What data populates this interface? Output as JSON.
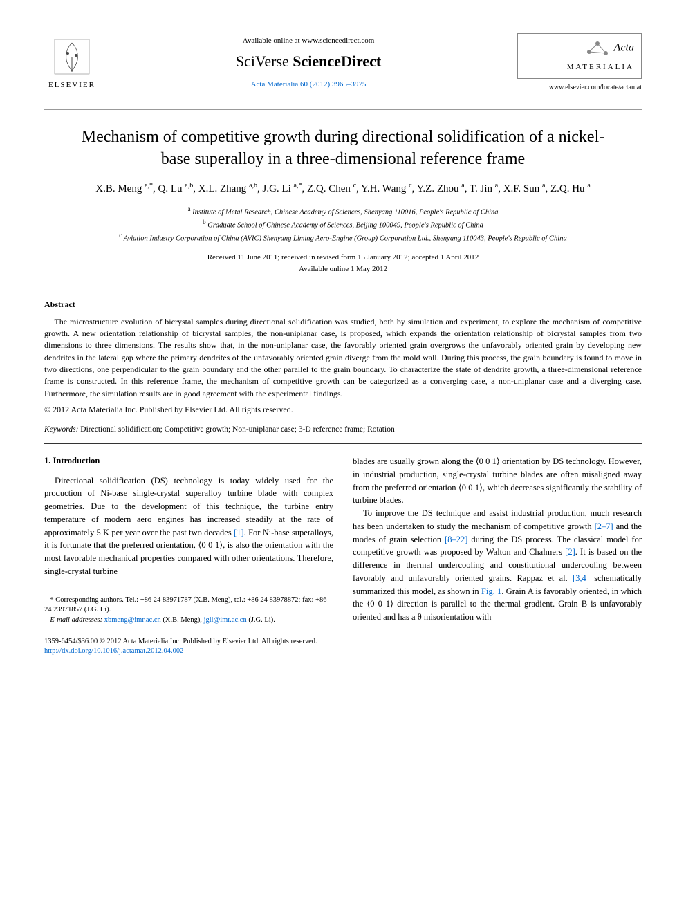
{
  "header": {
    "available_online": "Available online at www.sciencedirect.com",
    "scidirect_prefix": "SciVerse ",
    "scidirect_main": "ScienceDirect",
    "journal_ref": "Acta Materialia 60 (2012) 3965–3975",
    "elsevier_label": "ELSEVIER",
    "acta_italic": "Acta",
    "acta_caps": "MATERIALIA",
    "journal_url": "www.elsevier.com/locate/actamat"
  },
  "title": "Mechanism of competitive growth during directional solidification of a nickel-base superalloy in a three-dimensional reference frame",
  "authors_html": "X.B. Meng <sup>a,*</sup>, Q. Lu <sup>a,b</sup>, X.L. Zhang <sup>a,b</sup>, J.G. Li <sup>a,*</sup>, Z.Q. Chen <sup>c</sup>, Y.H. Wang <sup>c</sup>, Y.Z. Zhou <sup>a</sup>, T. Jin <sup>a</sup>, X.F. Sun <sup>a</sup>, Z.Q. Hu <sup>a</sup>",
  "affiliations": [
    "<sup>a</sup> Institute of Metal Research, Chinese Academy of Sciences, Shenyang 110016, People's Republic of China",
    "<sup>b</sup> Graduate School of Chinese Academy of Sciences, Beijing 100049, People's Republic of China",
    "<sup>c</sup> Aviation Industry Corporation of China (AVIC) Shenyang Liming Aero-Engine (Group) Corporation Ltd., Shenyang 110043, People's Republic of China"
  ],
  "dates": {
    "received": "Received 11 June 2011; received in revised form 15 January 2012; accepted 1 April 2012",
    "online": "Available online 1 May 2012"
  },
  "abstract": {
    "heading": "Abstract",
    "text": "The microstructure evolution of bicrystal samples during directional solidification was studied, both by simulation and experiment, to explore the mechanism of competitive growth. A new orientation relationship of bicrystal samples, the non-uniplanar case, is proposed, which expands the orientation relationship of bicrystal samples from two dimensions to three dimensions. The results show that, in the non-uniplanar case, the favorably oriented grain overgrows the unfavorably oriented grain by developing new dendrites in the lateral gap where the primary dendrites of the unfavorably oriented grain diverge from the mold wall. During this process, the grain boundary is found to move in two directions, one perpendicular to the grain boundary and the other parallel to the grain boundary. To characterize the state of dendrite growth, a three-dimensional reference frame is constructed. In this reference frame, the mechanism of competitive growth can be categorized as a converging case, a non-uniplanar case and a diverging case. Furthermore, the simulation results are in good agreement with the experimental findings.",
    "copyright": "© 2012 Acta Materialia Inc. Published by Elsevier Ltd. All rights reserved."
  },
  "keywords": {
    "label": "Keywords:",
    "text": " Directional solidification; Competitive growth; Non-uniplanar case; 3-D reference frame; Rotation"
  },
  "intro": {
    "heading": "1. Introduction",
    "col1": "Directional solidification (DS) technology is today widely used for the production of Ni-base single-crystal superalloy turbine blade with complex geometries. Due to the development of this technique, the turbine entry temperature of modern aero engines has increased steadily at the rate of approximately 5 K per year over the past two decades <span class=\"ref\">[1]</span>. For Ni-base superalloys, it is fortunate that the preferred orientation, ⟨0 0 1⟩, is also the orientation with the most favorable mechanical properties compared with other orientations. Therefore, single-crystal turbine",
    "col2_p1": "blades are usually grown along the ⟨0 0 1⟩ orientation by DS technology. However, in industrial production, single-crystal turbine blades are often misaligned away from the preferred orientation ⟨0 0 1⟩, which decreases significantly the stability of turbine blades.",
    "col2_p2": "To improve the DS technique and assist industrial production, much research has been undertaken to study the mechanism of competitive growth <span class=\"ref\">[2–7]</span> and the modes of grain selection <span class=\"ref\">[8–22]</span> during the DS process. The classical model for competitive growth was proposed by Walton and Chalmers <span class=\"ref\">[2]</span>. It is based on the difference in thermal undercooling and constitutional undercooling between favorably and unfavorably oriented grains. Rappaz et al. <span class=\"ref\">[3,4]</span> schematically summarized this model, as shown in <span class=\"ref\">Fig. 1</span>. Grain A is favorably oriented, in which the ⟨0 0 1⟩ direction is parallel to the thermal gradient. Grain B is unfavorably oriented and has a θ misorientation with"
  },
  "footnote": {
    "corresponding": "* Corresponding authors. Tel.: +86 24 83971787 (X.B. Meng), tel.: +86 24 83978872; fax: +86 24 23971857 (J.G. Li).",
    "email_label": "E-mail addresses:",
    "email1": "xbmeng@imr.ac.cn",
    "email1_who": " (X.B. Meng), ",
    "email2": "jgli@imr.ac.cn",
    "email2_who": " (J.G. Li)."
  },
  "bottom": {
    "line1": "1359-6454/$36.00 © 2012 Acta Materialia Inc. Published by Elsevier Ltd. All rights reserved.",
    "doi": "http://dx.doi.org/10.1016/j.actamat.2012.04.002"
  },
  "colors": {
    "link": "#0066cc",
    "text": "#000000",
    "rule": "#333333"
  }
}
